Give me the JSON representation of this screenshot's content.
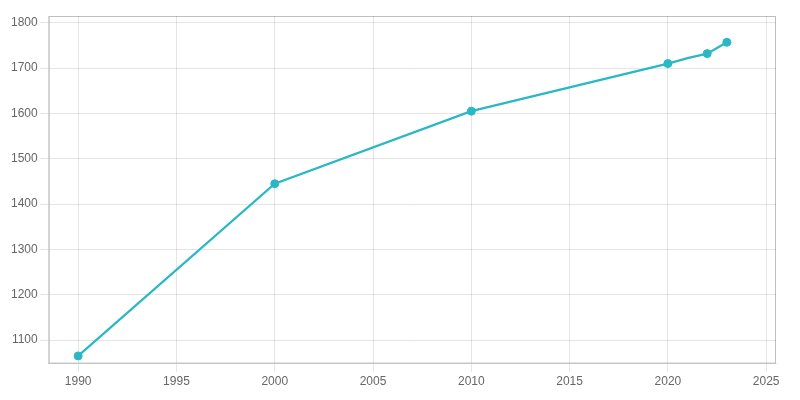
{
  "chart_data": {
    "type": "line",
    "x": [
      1990,
      2000,
      2010,
      2020,
      2021,
      2022,
      2023
    ],
    "series": [
      {
        "type": "line",
        "color": "#29b8c4",
        "marker": "none",
        "values": [
          1065,
          1445,
          1605,
          1710,
          1722,
          1732,
          1757
        ]
      },
      {
        "type": "scatter",
        "color": "#29b8c4",
        "marker": "circle",
        "values": [
          1065,
          1445,
          1605,
          1710,
          null,
          1732,
          1757
        ]
      }
    ],
    "xlim": [
      1988.5,
      2025.5
    ],
    "xticks": [
      1990,
      1995,
      2000,
      2005,
      2010,
      2015,
      2020,
      2025
    ],
    "ylim": [
      1048,
      1815
    ],
    "yticks": [
      1100,
      1200,
      1300,
      1400,
      1500,
      1600,
      1700,
      1800
    ],
    "grid": true
  }
}
